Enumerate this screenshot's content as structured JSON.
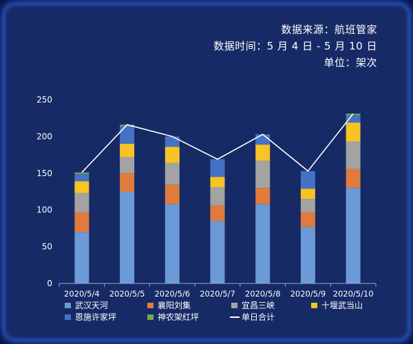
{
  "notes": {
    "source": "数据来源：航班管家",
    "period": "数据时间：5 月 4 日 - 5 月 10 日",
    "unit": "单位：架次"
  },
  "colors": {
    "background": "#162a66",
    "text": "#ffffff",
    "axis": "#9aa8cc",
    "total_line": "#ffffff"
  },
  "chart_data": {
    "type": "bar",
    "stacked": true,
    "categories": [
      "2020/5/4",
      "2020/5/5",
      "2020/5/6",
      "2020/5/7",
      "2020/5/8",
      "2020/5/9",
      "2020/5/10"
    ],
    "series": [
      {
        "name": "武汉天河",
        "color": "#6b9ad6",
        "values": [
          70,
          125,
          108,
          85,
          108,
          77,
          130
        ]
      },
      {
        "name": "襄阳刘集",
        "color": "#e07b3c",
        "values": [
          27,
          25,
          26,
          21,
          22,
          20,
          26
        ]
      },
      {
        "name": "宜昌三峡",
        "color": "#a3a3a3",
        "values": [
          26,
          22,
          30,
          25,
          37,
          18,
          37
        ]
      },
      {
        "name": "十堰武当山",
        "color": "#f7c325",
        "values": [
          16,
          18,
          22,
          14,
          22,
          14,
          26
        ]
      },
      {
        "name": "恩施许家坪",
        "color": "#4472c4",
        "values": [
          10,
          24,
          14,
          24,
          14,
          24,
          10
        ]
      },
      {
        "name": "神农架红坪",
        "color": "#6fad47",
        "values": [
          2,
          2,
          0,
          0,
          0,
          0,
          2
        ]
      }
    ],
    "total_line": {
      "name": "单日合计",
      "color": "#ffffff",
      "values": [
        151,
        216,
        200,
        169,
        203,
        153,
        231
      ]
    },
    "ylim": [
      0,
      250
    ],
    "yticks": [
      0,
      50,
      100,
      150,
      200,
      250
    ],
    "grid": false,
    "legend_position": "bottom",
    "xlabel": "",
    "ylabel": ""
  }
}
